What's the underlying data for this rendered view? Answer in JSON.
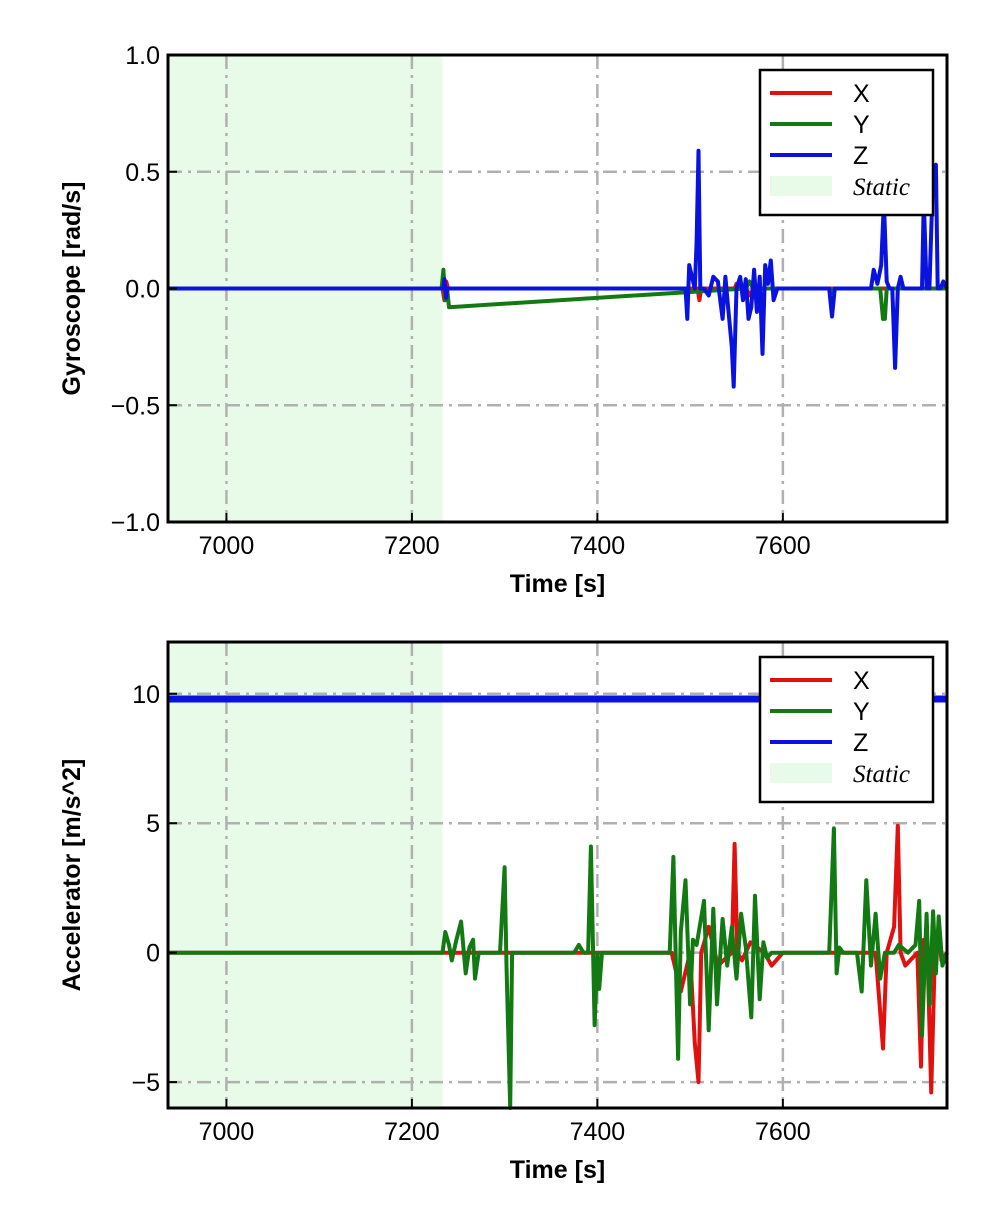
{
  "chart_data": [
    {
      "type": "line",
      "xlabel": "Time [s]",
      "ylabel": "Gyroscope [rad/s]",
      "xlim": [
        6937,
        7777
      ],
      "ylim": [
        -1.0,
        1.0
      ],
      "xticks": [
        7000,
        7200,
        7400,
        7600
      ],
      "xtick_labels": [
        "7000",
        "7200",
        "7400",
        "7600"
      ],
      "yticks": [
        -1.0,
        -0.5,
        0.0,
        0.5,
        1.0
      ],
      "ytick_labels": [
        "−1.0",
        "−0.5",
        "0.0",
        "0.5",
        "1.0"
      ],
      "grid": true,
      "legend_position": "top-right",
      "static_region": {
        "label": "Static",
        "x": [
          6937,
          7233
        ],
        "color": "#e8fbe8"
      },
      "series": [
        {
          "name": "X",
          "color": "#e0110f",
          "x": [
            6937,
            7233,
            7235,
            7237,
            7239,
            7500,
            7508,
            7510,
            7512,
            7540,
            7548,
            7550,
            7552,
            7560,
            7565,
            7568,
            7600,
            7777
          ],
          "y": [
            0.0,
            0.0,
            -0.05,
            0.03,
            0.0,
            0.0,
            0.0,
            -0.05,
            0.0,
            0.0,
            0.0,
            0.02,
            0.0,
            0.0,
            -0.03,
            0.0,
            0.0,
            0.0
          ]
        },
        {
          "name": "Y",
          "color": "#137a13",
          "x": [
            6937,
            7232,
            7234,
            7236,
            7238,
            7240,
            7560,
            7564,
            7568,
            7650,
            7652,
            7656,
            7705,
            7708,
            7710,
            7712,
            7777
          ],
          "y": [
            0.0,
            0.0,
            0.08,
            -0.05,
            0.0,
            -0.08,
            0.0,
            0.03,
            0.0,
            0.0,
            -0.02,
            0.0,
            0.0,
            -0.13,
            -0.13,
            0.0,
            0.0
          ]
        },
        {
          "name": "Z",
          "color": "#0a12e0",
          "x": [
            6937,
            7234,
            7235,
            7237,
            7238,
            7495,
            7497,
            7499,
            7502,
            7505,
            7507,
            7509,
            7511,
            7515,
            7520,
            7525,
            7530,
            7535,
            7538,
            7541,
            7545,
            7547,
            7550,
            7554,
            7557,
            7560,
            7563,
            7566,
            7569,
            7572,
            7575,
            7578,
            7581,
            7584,
            7587,
            7590,
            7594,
            7598,
            7605,
            7620,
            7640,
            7650,
            7653,
            7656,
            7660,
            7680,
            7695,
            7698,
            7702,
            7706,
            7709,
            7712,
            7715,
            7718,
            7721,
            7724,
            7727,
            7730,
            7735,
            7745,
            7750,
            7752,
            7755,
            7758,
            7762,
            7765,
            7767,
            7770,
            7773,
            7777
          ],
          "y": [
            0.0,
            0.0,
            0.04,
            -0.04,
            0.0,
            0.0,
            -0.13,
            0.1,
            0.05,
            0.0,
            0.2,
            0.59,
            0.0,
            0.0,
            -0.03,
            0.05,
            0.03,
            -0.13,
            0.05,
            -0.08,
            -0.25,
            -0.42,
            0.0,
            0.05,
            -0.05,
            0.04,
            -0.13,
            -0.08,
            0.08,
            -0.1,
            0.05,
            -0.28,
            0.1,
            0.02,
            0.12,
            -0.05,
            0.0,
            0.0,
            0.0,
            0.0,
            0.0,
            0.0,
            -0.12,
            0.0,
            0.0,
            0.0,
            0.0,
            0.08,
            0.02,
            0.1,
            0.37,
            0.03,
            0.0,
            0.0,
            -0.34,
            0.0,
            0.05,
            0.0,
            0.0,
            0.0,
            0.0,
            0.38,
            0.0,
            0.0,
            0.5,
            0.53,
            0.0,
            0.0,
            0.03,
            0.0
          ]
        }
      ]
    },
    {
      "type": "line",
      "xlabel": "Time [s]",
      "ylabel": "Accelerator [m/s^2]",
      "xlim": [
        6937,
        7777
      ],
      "ylim": [
        -6.0,
        12.0
      ],
      "xticks": [
        7000,
        7200,
        7400,
        7600
      ],
      "xtick_labels": [
        "7000",
        "7200",
        "7400",
        "7600"
      ],
      "yticks": [
        -5,
        0,
        5,
        10
      ],
      "ytick_labels": [
        "−5",
        "0",
        "5",
        "10"
      ],
      "grid": true,
      "legend_position": "top-right",
      "static_region": {
        "label": "Static",
        "x": [
          6937,
          7233
        ],
        "color": "#e8fbe8"
      },
      "series": [
        {
          "name": "X",
          "color": "#e0110f",
          "x": [
            6937,
            7480,
            7490,
            7500,
            7505,
            7509,
            7512,
            7520,
            7530,
            7545,
            7548,
            7551,
            7556,
            7565,
            7580,
            7588,
            7600,
            7650,
            7700,
            7708,
            7712,
            7720,
            7724,
            7727,
            7732,
            7745,
            7749,
            7752,
            7756,
            7760,
            7764,
            7768,
            7771,
            7777
          ],
          "y": [
            0.0,
            0.0,
            -1.5,
            0.0,
            -3.5,
            -5.0,
            0.0,
            1.0,
            -0.5,
            0.0,
            4.2,
            0.0,
            -0.3,
            0.4,
            0.0,
            -0.5,
            0.0,
            0.0,
            0.0,
            -3.7,
            0.0,
            1.0,
            4.9,
            0.0,
            -0.5,
            0.0,
            -4.4,
            0.5,
            0.0,
            -5.4,
            0.0,
            1.0,
            -0.3,
            0.0
          ]
        },
        {
          "name": "Y",
          "color": "#137a13",
          "x": [
            6937,
            7233,
            7236,
            7240,
            7243,
            7248,
            7253,
            7258,
            7262,
            7266,
            7268,
            7272,
            7295,
            7300,
            7302,
            7306,
            7308,
            7315,
            7375,
            7380,
            7385,
            7390,
            7393,
            7397,
            7400,
            7402,
            7405,
            7478,
            7482,
            7487,
            7490,
            7495,
            7500,
            7503,
            7507,
            7515,
            7520,
            7525,
            7529,
            7535,
            7540,
            7545,
            7550,
            7555,
            7560,
            7566,
            7570,
            7575,
            7579,
            7583,
            7588,
            7595,
            7650,
            7655,
            7658,
            7661,
            7665,
            7680,
            7685,
            7690,
            7695,
            7700,
            7705,
            7710,
            7715,
            7720,
            7725,
            7735,
            7743,
            7747,
            7750,
            7755,
            7758,
            7762,
            7765,
            7768,
            7772,
            7777
          ],
          "y": [
            0.0,
            0.0,
            0.8,
            0.3,
            -0.3,
            0.5,
            1.2,
            -0.8,
            0.2,
            0.5,
            -1.0,
            0.0,
            0.0,
            3.3,
            -0.5,
            -6.0,
            0.0,
            0.0,
            0.0,
            0.3,
            0.0,
            0.0,
            4.1,
            -2.8,
            0.0,
            -1.4,
            0.0,
            0.0,
            3.7,
            -4.1,
            0.8,
            2.8,
            -2.0,
            0.5,
            0.3,
            2.0,
            -3.0,
            1.7,
            -2.0,
            1.3,
            -0.5,
            1.0,
            -1.0,
            1.5,
            0.2,
            -2.5,
            2.2,
            -1.8,
            0.4,
            -0.2,
            0.0,
            0.0,
            0.0,
            4.8,
            -0.8,
            0.2,
            0.0,
            0.0,
            -1.5,
            2.8,
            -0.5,
            1.5,
            -1.0,
            0.0,
            0.0,
            0.0,
            0.3,
            0.0,
            0.3,
            2.0,
            -3.2,
            1.5,
            -2.0,
            1.6,
            -0.8,
            1.4,
            -0.5,
            0.0
          ]
        },
        {
          "name": "Z",
          "color": "#0a12e0",
          "x": [
            6937,
            7777
          ],
          "y": [
            9.8,
            9.8
          ]
        }
      ]
    }
  ]
}
